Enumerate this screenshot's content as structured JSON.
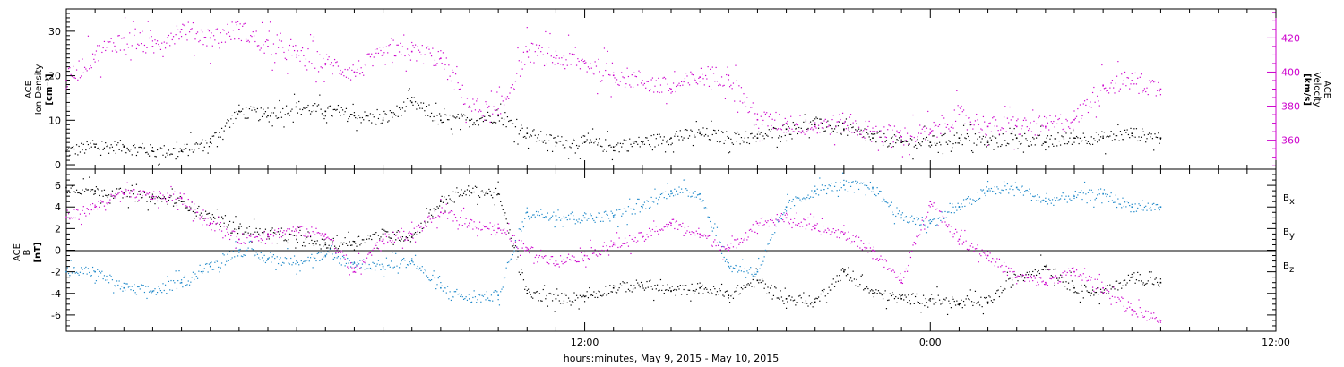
{
  "colors": {
    "black": "#000000",
    "magenta": "#cc00cc",
    "blue": "#1a86c8"
  },
  "x_axis": {
    "title": "hours:minutes, May  9, 2015 - May 10, 2015",
    "range_hours": [
      -6,
      36
    ],
    "major_ticks": [
      12,
      24,
      36
    ],
    "major_labels": [
      "12:00",
      "0:00",
      "12:00"
    ]
  },
  "chart_data": [
    {
      "type": "scatter",
      "panel": "top",
      "ylabel_lines": [
        "ACE",
        "Ion Density",
        "[cm⁻³]"
      ],
      "y2label_lines": [
        "ACE",
        "Velocity",
        "[km/s]"
      ],
      "ylim": [
        -1,
        35
      ],
      "y2lim": [
        343,
        437
      ],
      "yticks": [
        0,
        10,
        20,
        30
      ],
      "y2ticks": [
        360,
        380,
        400,
        420
      ],
      "series": [
        {
          "axis": "left",
          "color": "black",
          "name": "",
          "x": [
            -6,
            -5,
            -4,
            -3,
            -2,
            -1,
            0,
            1,
            2,
            3,
            4,
            5,
            6,
            7,
            8,
            9,
            10,
            11,
            12,
            13,
            14,
            15,
            16,
            17,
            18,
            19,
            20,
            21,
            22,
            23,
            24,
            25,
            26,
            27,
            28,
            29,
            30,
            31,
            32
          ],
          "y": [
            3,
            4,
            4,
            3,
            3,
            5,
            12,
            11,
            13,
            12,
            11,
            10,
            14,
            10,
            10,
            11,
            7,
            5,
            5,
            4,
            5,
            6,
            7,
            6,
            6,
            8,
            9,
            8,
            6,
            5,
            5,
            6,
            5,
            6,
            5,
            6,
            6,
            7,
            6
          ]
        },
        {
          "axis": "right",
          "color": "magenta",
          "name": "",
          "x": [
            -6,
            -5,
            -4,
            -3,
            -2,
            -1,
            0,
            1,
            2,
            3,
            4,
            5,
            6,
            7,
            8,
            9,
            10,
            11,
            12,
            13,
            14,
            15,
            16,
            17,
            18,
            19,
            20,
            21,
            22,
            23,
            24,
            25,
            26,
            27,
            28,
            29,
            30,
            31,
            32
          ],
          "y": [
            395,
            410,
            420,
            415,
            425,
            420,
            425,
            415,
            410,
            405,
            400,
            410,
            412,
            408,
            380,
            375,
            412,
            408,
            405,
            398,
            395,
            390,
            397,
            398,
            372,
            370,
            368,
            370,
            365,
            362,
            364,
            375,
            368,
            368,
            368,
            372,
            392,
            395,
            390
          ]
        }
      ]
    },
    {
      "type": "scatter",
      "panel": "bottom",
      "ylabel_lines": [
        "ACE",
        "B",
        "[nT]"
      ],
      "ylim": [
        -7.5,
        7.5
      ],
      "yticks": [
        -6,
        -4,
        -2,
        0,
        2,
        4,
        6
      ],
      "legend": [
        {
          "label": "B",
          "sub": "x",
          "color": "black"
        },
        {
          "label": "B",
          "sub": "y",
          "color": "blue"
        },
        {
          "label": "B",
          "sub": "z",
          "color": "magenta"
        }
      ],
      "series": [
        {
          "name": "Bx",
          "color": "black",
          "x": [
            -6,
            -5,
            -4,
            -3,
            -2,
            -1,
            0,
            1,
            2,
            3,
            4,
            5,
            6,
            7,
            8,
            9,
            10,
            11,
            12,
            13,
            14,
            15,
            16,
            17,
            18,
            19,
            20,
            21,
            22,
            23,
            24,
            25,
            26,
            27,
            28,
            29,
            30,
            31,
            32
          ],
          "y": [
            5.8,
            5.5,
            5.2,
            4.8,
            4.5,
            3,
            2,
            1.5,
            1,
            0.5,
            0.8,
            1.5,
            1.2,
            4.5,
            5.5,
            5.2,
            -4,
            -4.5,
            -4.3,
            -3.5,
            -3.2,
            -3.8,
            -3.5,
            -4.2,
            -2.8,
            -4.5,
            -4.8,
            -2,
            -4,
            -4.5,
            -4.5,
            -5,
            -4.8,
            -2.5,
            -1.5,
            -3.5,
            -4,
            -2.5,
            -3
          ]
        },
        {
          "name": "By",
          "color": "blue",
          "x": [
            -6,
            -5,
            -4,
            -3,
            -2,
            -1,
            0,
            1,
            2,
            3,
            4,
            5,
            6,
            7,
            8,
            9,
            10,
            11,
            12,
            13,
            14,
            15,
            16,
            17,
            18,
            19,
            20,
            21,
            22,
            23,
            24,
            25,
            26,
            27,
            28,
            29,
            30,
            31,
            32
          ],
          "y": [
            -2,
            -2,
            -3.5,
            -3.8,
            -3,
            -1.5,
            0,
            -0.8,
            -1,
            -0.5,
            -1.2,
            -1.5,
            -1,
            -3.5,
            -4.5,
            -4.2,
            3.5,
            3.2,
            3,
            3.2,
            4,
            5.5,
            5.2,
            -1.5,
            -2,
            4,
            5.5,
            6,
            5.8,
            3,
            2.5,
            4,
            5.5,
            5.8,
            4.5,
            5,
            5.2,
            4,
            4
          ]
        },
        {
          "name": "Bz",
          "color": "magenta",
          "x": [
            -6,
            -5,
            -4,
            -3,
            -2,
            -1,
            0,
            1,
            2,
            3,
            4,
            5,
            6,
            7,
            8,
            9,
            10,
            11,
            12,
            13,
            14,
            15,
            16,
            17,
            18,
            19,
            20,
            21,
            22,
            23,
            24,
            25,
            26,
            27,
            28,
            29,
            30,
            31,
            32
          ],
          "y": [
            3,
            4,
            5.2,
            5,
            4.8,
            2.5,
            1,
            1.5,
            1.8,
            1.5,
            -2,
            1,
            1.5,
            3.5,
            2.5,
            2,
            0,
            -1,
            -0.5,
            0.5,
            1.2,
            2.5,
            1.5,
            0,
            2.5,
            3,
            2,
            1.5,
            0,
            -3,
            4.5,
            1,
            -0.5,
            -2.5,
            -3,
            -2,
            -3.5,
            -5.5,
            -6.5
          ]
        }
      ]
    }
  ]
}
